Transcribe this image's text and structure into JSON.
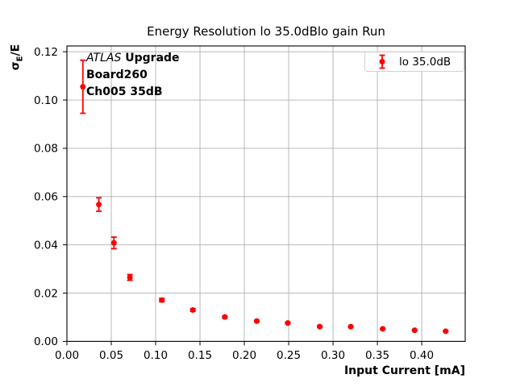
{
  "chart_data": {
    "type": "scatter",
    "title": "Energy Resolution lo 35.0dBlo gain Run",
    "xlabel": "Input Current [mA]",
    "ylabel": "σE/E",
    "ylabel_parts": {
      "sigma": "σ",
      "subscript": "E",
      "rest": "/E"
    },
    "xlim": [
      0,
      0.449
    ],
    "ylim": [
      0,
      0.1224
    ],
    "xticks": [
      0.0,
      0.05,
      0.1,
      0.15,
      0.2,
      0.25,
      0.3,
      0.35,
      0.4
    ],
    "yticks": [
      0.0,
      0.02,
      0.04,
      0.06,
      0.08,
      0.1,
      0.12
    ],
    "grid": true,
    "legend": {
      "label": "lo 35.0dB",
      "position": "upper right"
    },
    "annotation": {
      "line1_italic": "ATLAS",
      "line1_bold": " Upgrade",
      "line2": "Board260",
      "line3": "Ch005 35dB"
    },
    "series": [
      {
        "name": "lo 35.0dB",
        "marker": "circle",
        "color": "#ff0000",
        "x": [
          0.018,
          0.036,
          0.053,
          0.071,
          0.107,
          0.142,
          0.178,
          0.214,
          0.249,
          0.285,
          0.32,
          0.356,
          0.392,
          0.427
        ],
        "y": [
          0.1055,
          0.0567,
          0.0408,
          0.0265,
          0.0171,
          0.013,
          0.0101,
          0.0084,
          0.0076,
          0.0061,
          0.0061,
          0.0052,
          0.0046,
          0.0042
        ],
        "yerr": [
          0.011,
          0.0028,
          0.0024,
          0.0012,
          0.0007,
          0.0005,
          0.0004,
          0.0003,
          0.0003,
          0.0003,
          0.0002,
          0.0002,
          0.0002,
          0.0002
        ]
      }
    ],
    "colors": {
      "grid": "#b0b0b0",
      "spine": "#000000",
      "text": "#000000",
      "legend_border": "#d2d2d2",
      "background": "#ffffff"
    }
  }
}
